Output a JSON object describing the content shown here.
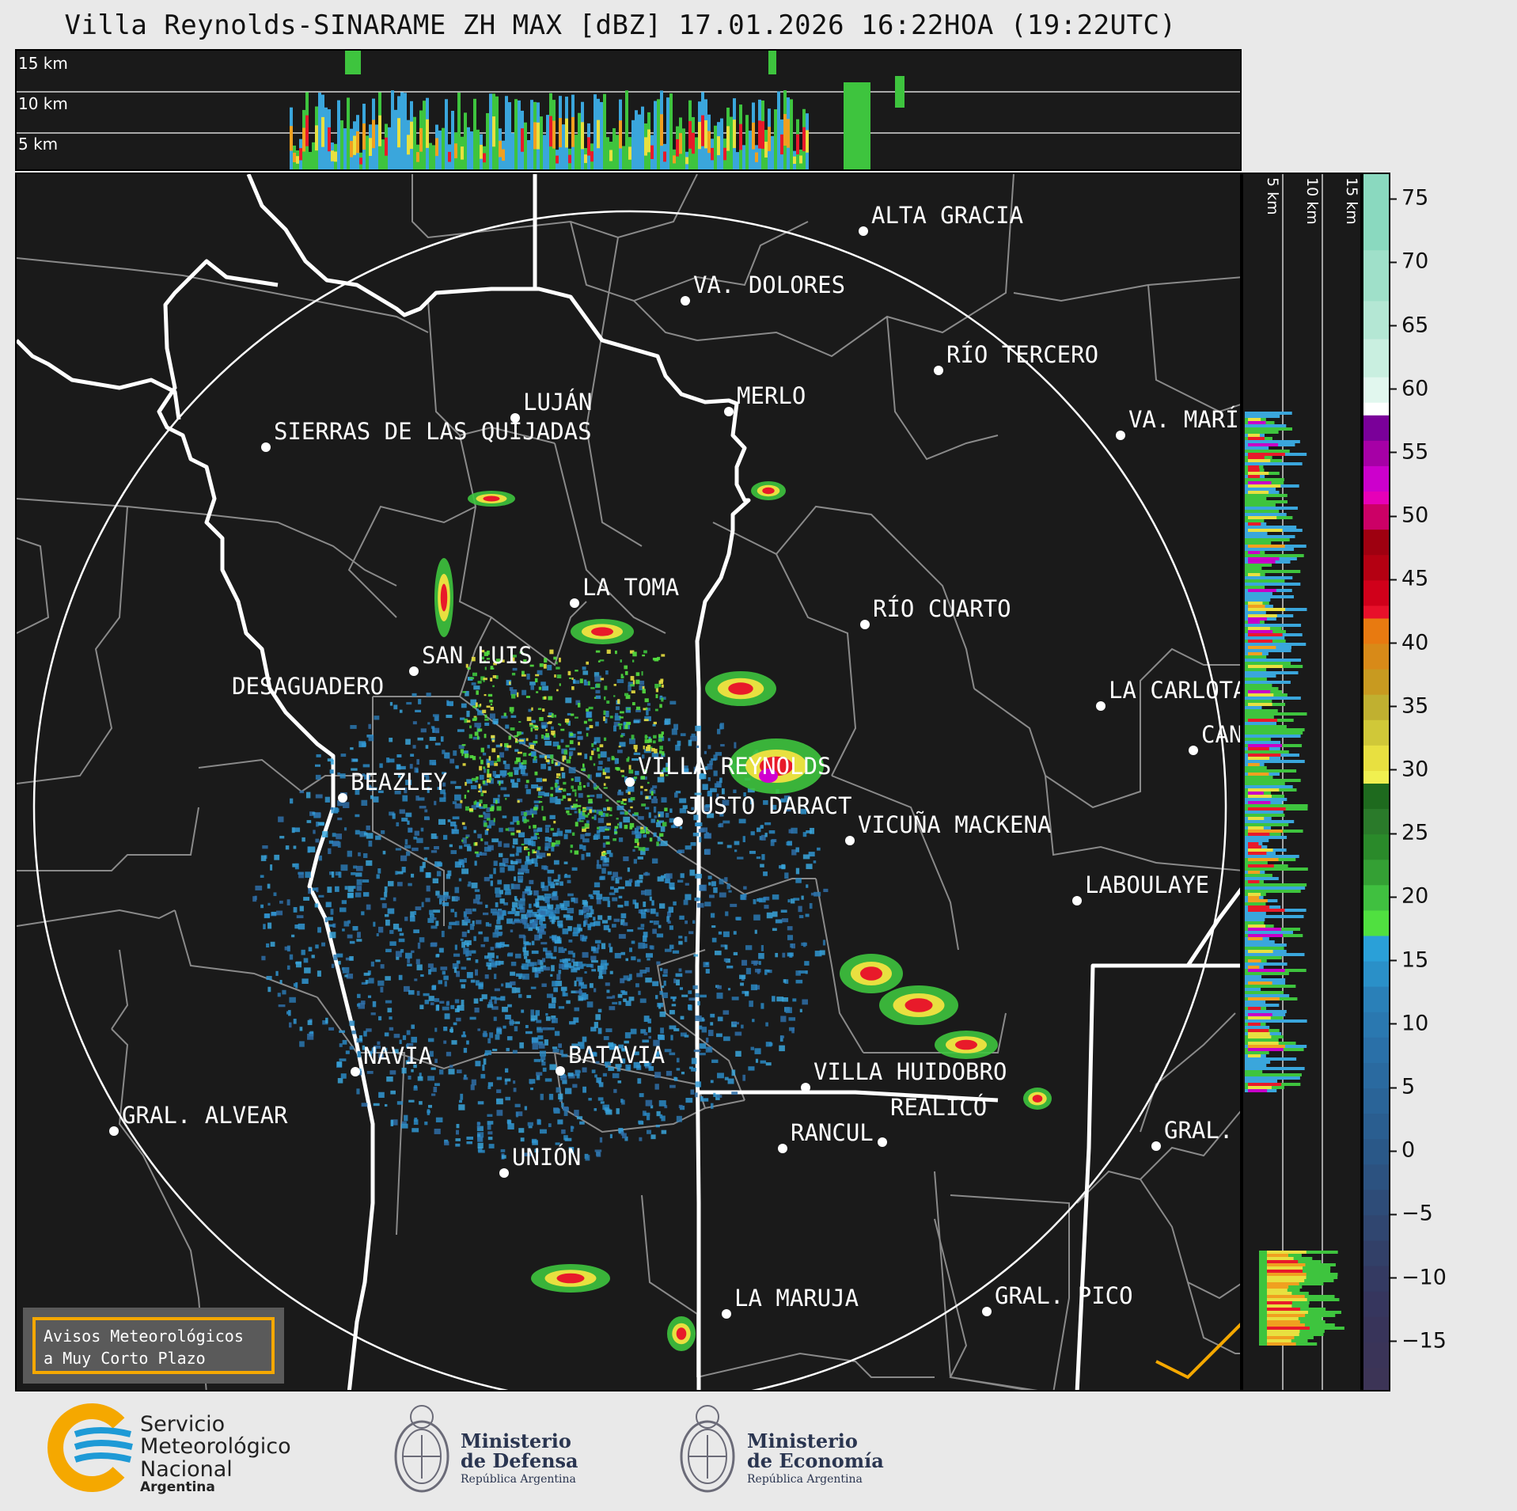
{
  "title": "Villa Reynolds-SINARAME ZH MAX [dBZ] 17.01.2026 16:22HOA (19:22UTC)",
  "top_panel": {
    "altitude_labels": [
      "15 km",
      "10 km",
      "5 km"
    ]
  },
  "side_panel": {
    "altitude_labels": [
      "5 km",
      "10 km",
      "15 km"
    ]
  },
  "colorbar": {
    "unit": "dBZ",
    "ticks": [
      "75",
      "70",
      "65",
      "60",
      "55",
      "50",
      "45",
      "40",
      "35",
      "30",
      "25",
      "20",
      "15",
      "10",
      "5",
      "0",
      "−5",
      "−10",
      "−15"
    ],
    "range": [
      -19,
      77
    ]
  },
  "cities": [
    {
      "name": "ALTA GRACIA"
    },
    {
      "name": "VA. DOLORES"
    },
    {
      "name": "RÍO TERCERO"
    },
    {
      "name": "LUJÁN"
    },
    {
      "name": "MERLO"
    },
    {
      "name": "SIERRAS DE LAS QUIJADAS"
    },
    {
      "name": "VA. MARÍ"
    },
    {
      "name": "LA TOMA"
    },
    {
      "name": "RÍO CUARTO"
    },
    {
      "name": "SAN LUIS"
    },
    {
      "name": "DESAGUADERO"
    },
    {
      "name": "LA CARLOTA"
    },
    {
      "name": "CAN"
    },
    {
      "name": "VILLA REYNOLDS"
    },
    {
      "name": "BEAZLEY"
    },
    {
      "name": "JUSTO DARACT"
    },
    {
      "name": "VICUÑA MACKENA"
    },
    {
      "name": "LABOULAYE"
    },
    {
      "name": "NAVIA"
    },
    {
      "name": "BATAVIA"
    },
    {
      "name": "VILLA HUIDOBRO"
    },
    {
      "name": "GRAL. ALVEAR"
    },
    {
      "name": "RANCUL"
    },
    {
      "name": "REALICÓ"
    },
    {
      "name": "GRAL."
    },
    {
      "name": "UNIÓN"
    },
    {
      "name": "LA MARUJA"
    },
    {
      "name": "GRAL. PICO"
    }
  ],
  "aviso": {
    "line1": "Avisos Meteorológicos",
    "line2": "a Muy Corto Plazo"
  },
  "footer": {
    "smn": {
      "line1": "Servicio",
      "line2": "Meteorológico",
      "line3": "Nacional",
      "line4": "Argentina"
    },
    "defensa": {
      "line1": "Ministerio",
      "line2": "de Defensa",
      "line3": "República Argentina"
    },
    "economia": {
      "line1": "Ministerio",
      "line2": "de Economía",
      "line3": "República Argentina"
    }
  },
  "colors": {
    "panel_bg": "#1a1a1a",
    "border_white": "#ffffff",
    "border_gray": "#8a8a8a",
    "aviso_border": "#f5a800",
    "smn_blue": "#1e9ad6",
    "smn_yellow": "#f5a800"
  }
}
